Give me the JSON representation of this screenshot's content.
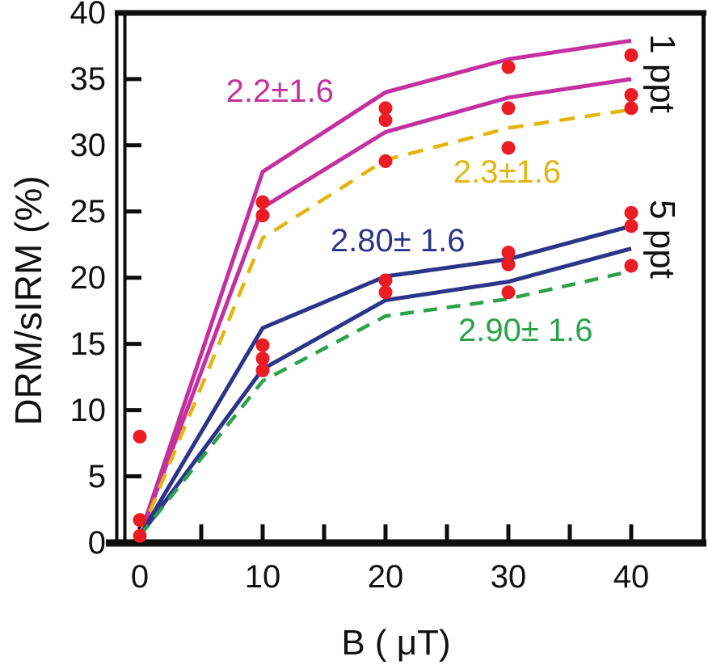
{
  "figure": {
    "background": "#ffffff",
    "axis_color": "#0d0d0d",
    "text_color": "#111111"
  },
  "chart_data": {
    "type": "line",
    "title": "",
    "xlabel": "B ( μT)",
    "ylabel": "DRM/sIRM (%)",
    "xlim": [
      -2,
      46
    ],
    "ylim": [
      0,
      40
    ],
    "grid": false,
    "legend_position": "none (inline colored annotations)",
    "x_major_ticks": [
      0,
      10,
      20,
      30,
      40
    ],
    "x_minor_ticks": [
      5,
      15,
      25,
      35
    ],
    "x_tick_labels": [
      "0",
      "10",
      "20",
      "30",
      "40"
    ],
    "y_ticks": [
      5,
      10,
      15,
      20,
      25,
      30,
      35,
      40
    ],
    "y_tick_labels": [
      "5",
      "10",
      "15",
      "20",
      "25",
      "30",
      "35",
      "40"
    ],
    "y_zero_label": "0",
    "x": [
      0,
      10,
      20,
      30,
      40
    ],
    "series": [
      {
        "name": "1 ppt envelope upper",
        "group": "1 ppt",
        "color": "#c4309f",
        "style": "solid",
        "values": [
          0.5,
          28.0,
          34.0,
          36.5,
          37.9
        ]
      },
      {
        "name": "1 ppt envelope lower",
        "group": "1 ppt",
        "color": "#c4309f",
        "style": "solid",
        "values": [
          0.5,
          25.3,
          31.0,
          33.6,
          35.0
        ]
      },
      {
        "name": "1 ppt best fit 2.3±1.6",
        "group": "1 ppt",
        "color": "#e3b50e",
        "style": "dashed",
        "values": [
          0.5,
          23.0,
          28.9,
          31.3,
          32.7
        ]
      },
      {
        "name": "5 ppt envelope upper",
        "group": "5 ppt",
        "color": "#2c3588",
        "style": "solid",
        "values": [
          0.5,
          16.2,
          20.1,
          21.4,
          23.9
        ]
      },
      {
        "name": "5 ppt envelope lower",
        "group": "5 ppt",
        "color": "#2c3588",
        "style": "solid",
        "values": [
          0.5,
          13.1,
          18.3,
          19.7,
          22.2
        ]
      },
      {
        "name": "5 ppt best fit 2.90±1.6",
        "group": "5 ppt",
        "color": "#2ba14b",
        "style": "dashed",
        "values": [
          0.5,
          12.2,
          17.1,
          18.4,
          20.5
        ]
      }
    ],
    "scatter": {
      "name": "measured data points",
      "color": "#ec1c24",
      "points": [
        [
          0,
          0.5
        ],
        [
          0,
          1.7
        ],
        [
          0,
          8.0
        ],
        [
          10,
          13.0
        ],
        [
          10,
          13.9
        ],
        [
          10,
          14.9
        ],
        [
          10,
          24.7
        ],
        [
          10,
          25.7
        ],
        [
          20,
          18.9
        ],
        [
          20,
          19.8
        ],
        [
          20,
          28.8
        ],
        [
          20,
          31.9
        ],
        [
          20,
          32.8
        ],
        [
          30,
          18.9
        ],
        [
          30,
          21.0
        ],
        [
          30,
          21.9
        ],
        [
          30,
          29.8
        ],
        [
          30,
          32.8
        ],
        [
          30,
          35.9
        ],
        [
          40,
          20.9
        ],
        [
          40,
          23.9
        ],
        [
          40,
          24.9
        ],
        [
          40,
          32.8
        ],
        [
          40,
          33.8
        ],
        [
          40,
          36.8
        ]
      ]
    },
    "annotations": [
      {
        "text": "2.2±1.6",
        "color": "#c4309f",
        "at": [
          11.4,
          34.1
        ],
        "rotate": 0
      },
      {
        "text": "2.3±1.6",
        "color": "#e3b50e",
        "at": [
          29.9,
          28.0
        ],
        "rotate": 0
      },
      {
        "text": "2.80± 1.6",
        "color": "#2c3588",
        "at": [
          21.0,
          22.8
        ],
        "rotate": 0
      },
      {
        "text": "2.90± 1.6",
        "color": "#2ba14b",
        "at": [
          31.4,
          16.0
        ],
        "rotate": 0
      },
      {
        "text": "1 ppt",
        "color": "#111111",
        "at": [
          42.5,
          35.4
        ],
        "rotate": 90
      },
      {
        "text": "5 ppt",
        "color": "#111111",
        "at": [
          42.5,
          22.9
        ],
        "rotate": 90
      }
    ]
  }
}
